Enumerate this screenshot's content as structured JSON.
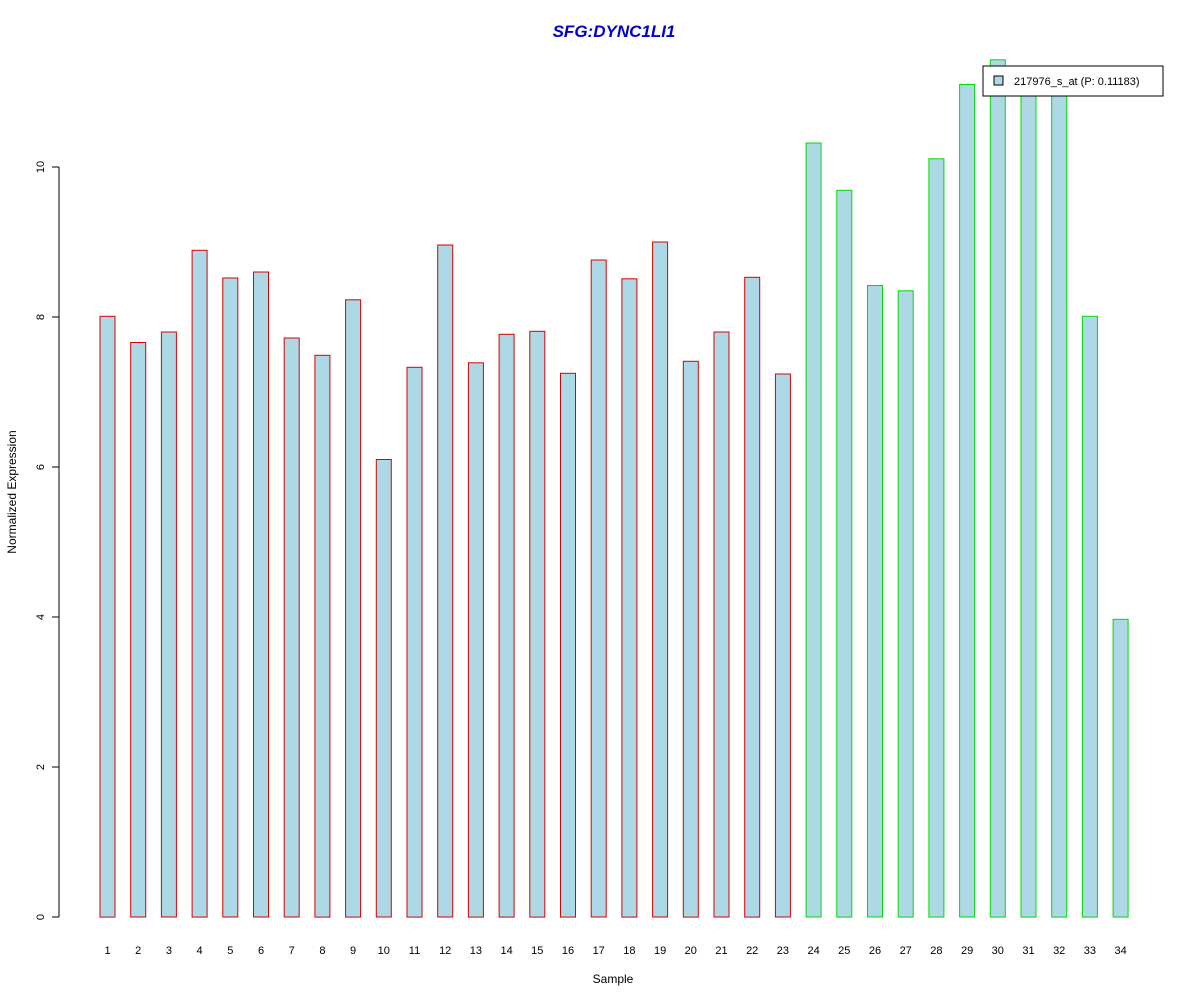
{
  "chart_data": {
    "type": "bar",
    "title": "SFG:DYNC1LI1",
    "xlabel": "Sample",
    "ylabel": "Normalized Expression",
    "ylim": [
      0,
      11.5
    ],
    "yticks": [
      0,
      2,
      4,
      6,
      8,
      10
    ],
    "grid": false,
    "legend_position": "top-right",
    "categories": [
      "1",
      "2",
      "3",
      "4",
      "5",
      "6",
      "7",
      "8",
      "9",
      "10",
      "11",
      "12",
      "13",
      "14",
      "15",
      "16",
      "17",
      "18",
      "19",
      "20",
      "21",
      "22",
      "23",
      "24",
      "25",
      "26",
      "27",
      "28",
      "29",
      "30",
      "31",
      "32",
      "33",
      "34"
    ],
    "series": [
      {
        "name": "217976_s_at (P: 0.11183)",
        "fill": "#add8e6",
        "values": [
          8.01,
          7.66,
          7.8,
          8.89,
          8.52,
          8.6,
          7.72,
          7.49,
          8.23,
          6.1,
          7.33,
          8.96,
          7.39,
          7.77,
          7.81,
          7.25,
          8.76,
          8.51,
          9.0,
          7.41,
          7.8,
          8.53,
          7.24,
          10.32,
          9.69,
          8.42,
          8.35,
          10.11,
          11.1,
          11.43,
          11.03,
          11.05,
          8.01,
          3.97
        ]
      }
    ],
    "group_colors": [
      "#dd0000",
      "#dd0000",
      "#dd0000",
      "#dd0000",
      "#dd0000",
      "#dd0000",
      "#dd0000",
      "#dd0000",
      "#dd0000",
      "#dd0000",
      "#dd0000",
      "#dd0000",
      "#dd0000",
      "#dd0000",
      "#dd0000",
      "#dd0000",
      "#dd0000",
      "#dd0000",
      "#dd0000",
      "#dd0000",
      "#dd0000",
      "#dd0000",
      "#dd0000",
      "#00dd00",
      "#00dd00",
      "#00dd00",
      "#00dd00",
      "#00dd00",
      "#00dd00",
      "#00dd00",
      "#00dd00",
      "#00dd00",
      "#00dd00",
      "#00dd00"
    ],
    "title_color": "#0000cc"
  }
}
